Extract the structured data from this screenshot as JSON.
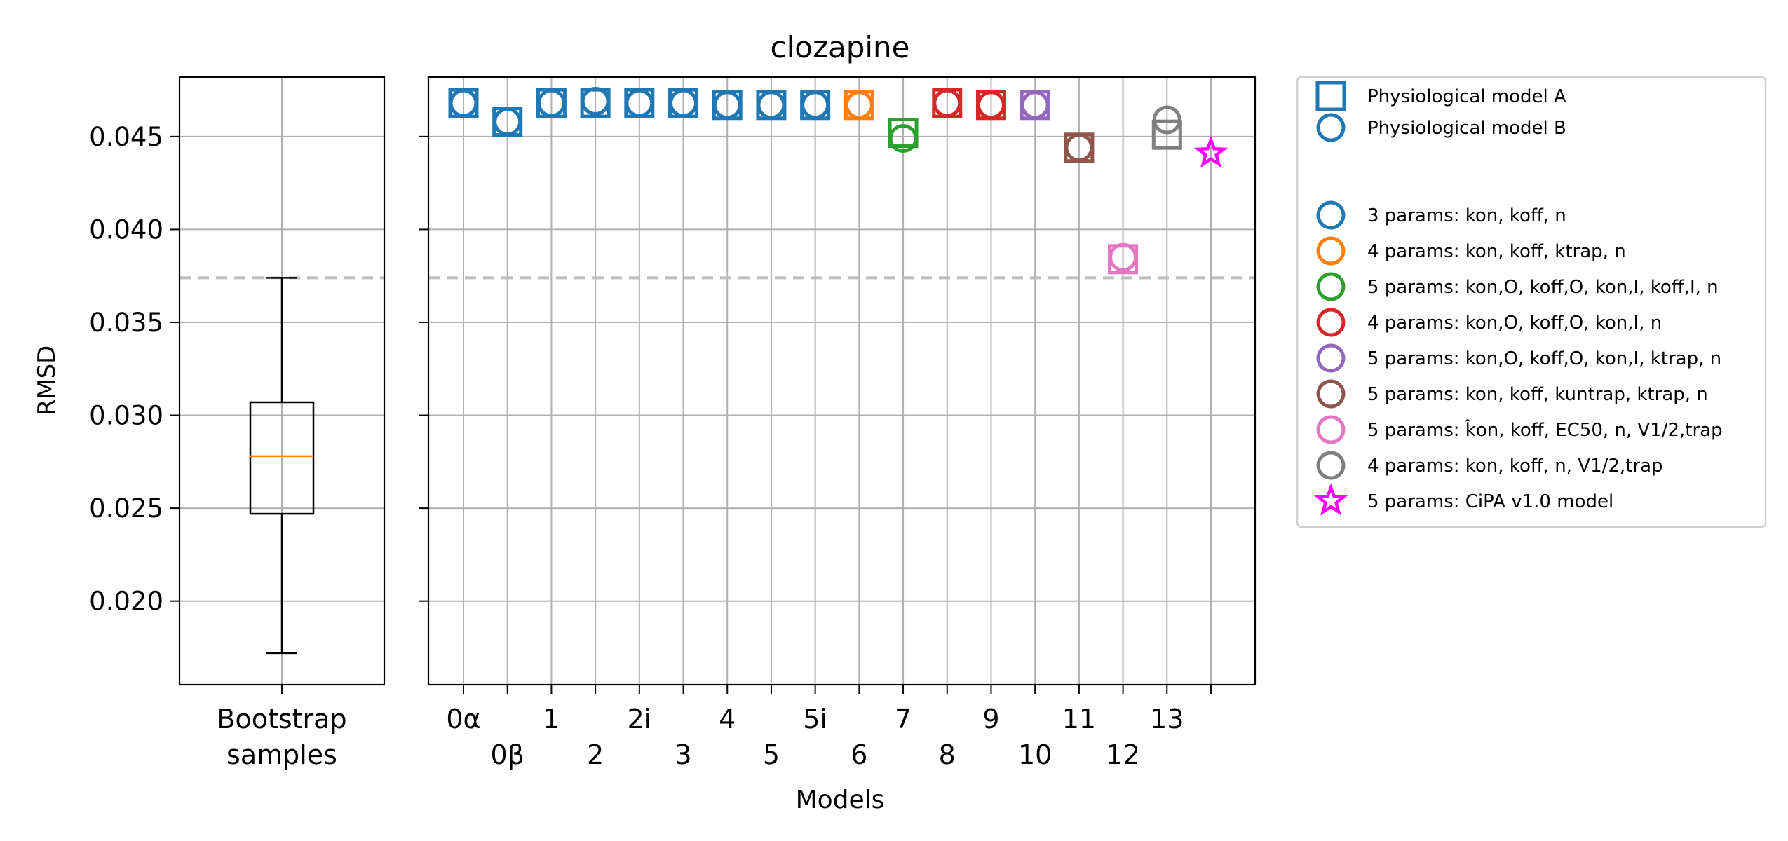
{
  "chart_data": [
    {
      "type": "box",
      "title": "",
      "xlabel": "",
      "ylabel": "RMSD",
      "ylim": [
        0.0155,
        0.0482
      ],
      "yticks": [
        "0.020",
        "0.025",
        "0.030",
        "0.035",
        "0.040",
        "0.045"
      ],
      "category_label": [
        "Bootstrap",
        "samples"
      ],
      "box": {
        "whisker_low": 0.0172,
        "q1": 0.0247,
        "median": 0.0278,
        "q3": 0.0307,
        "whisker_high": 0.0374
      },
      "reference_line": 0.0374,
      "grid": true,
      "colors": {
        "box": "#000000",
        "median": "#ff7f0e",
        "reference_line": "#bdbdbd"
      }
    },
    {
      "type": "scatter",
      "title": "clozapine",
      "xlabel": "Models",
      "ylabel": "",
      "ylim": [
        0.0155,
        0.0482
      ],
      "grid": true,
      "reference_line": 0.0374,
      "x_tick_labels": [
        "0α",
        "0β",
        "1",
        "2",
        "2i",
        "3",
        "4",
        "5",
        "5i",
        "6",
        "7",
        "8",
        "9",
        "10",
        "11",
        "12",
        "13",
        ""
      ],
      "series": [
        {
          "name": "Physiological model A",
          "marker": "square",
          "values": [
            0.0468,
            0.0458,
            0.0468,
            0.0468,
            0.0468,
            0.0468,
            0.0467,
            0.0467,
            0.0467,
            0.0467,
            0.0452,
            0.0468,
            0.0467,
            0.0467,
            0.0444,
            0.0384,
            0.0451,
            null
          ]
        },
        {
          "name": "Physiological model B",
          "marker": "circle",
          "values": [
            0.0468,
            0.0458,
            0.0468,
            0.0469,
            0.0468,
            0.0468,
            0.0467,
            0.0467,
            0.0467,
            0.0467,
            0.0449,
            0.0468,
            0.0467,
            0.0467,
            0.0444,
            0.0385,
            0.0459,
            null
          ]
        },
        {
          "name": "5 params: CiPA v1.0 model",
          "marker": "star",
          "values": [
            null,
            null,
            null,
            null,
            null,
            null,
            null,
            null,
            null,
            null,
            null,
            null,
            null,
            null,
            null,
            null,
            null,
            0.0441
          ]
        }
      ],
      "point_colors": [
        "#1f77b4",
        "#1f77b4",
        "#1f77b4",
        "#1f77b4",
        "#1f77b4",
        "#1f77b4",
        "#1f77b4",
        "#1f77b4",
        "#1f77b4",
        "#ff7f0e",
        "#2ca02c",
        "#d62728",
        "#d62728",
        "#9467bd",
        "#8c564b",
        "#e377c2",
        "#7f7f7f",
        "#ff00ff"
      ],
      "legend_position": "outside-right",
      "legend": {
        "marker_entries": [
          {
            "marker": "square",
            "color": "#1f77b4",
            "label": "Physiological model A"
          },
          {
            "marker": "circle",
            "color": "#1f77b4",
            "label": "Physiological model B"
          }
        ],
        "param_entries": [
          {
            "marker": "circle",
            "color": "#1f77b4",
            "label": "3 params: kon, koff, n"
          },
          {
            "marker": "circle",
            "color": "#ff7f0e",
            "label": "4 params: kon, koff, ktrap, n"
          },
          {
            "marker": "circle",
            "color": "#2ca02c",
            "label": "5 params: kon,O, koff,O, kon,I, koff,I, n"
          },
          {
            "marker": "circle",
            "color": "#d62728",
            "label": "4 params: kon,O, koff,O, kon,I, n"
          },
          {
            "marker": "circle",
            "color": "#9467bd",
            "label": "5 params: kon,O, koff,O, kon,I, ktrap, n"
          },
          {
            "marker": "circle",
            "color": "#8c564b",
            "label": "5 params: kon, koff, kuntrap, ktrap, n"
          },
          {
            "marker": "circle",
            "color": "#e377c2",
            "label": "5 params: k̂on, koff, EC50, n, V1/2,trap"
          },
          {
            "marker": "circle",
            "color": "#7f7f7f",
            "label": "4 params: kon, koff, n, V1/2,trap"
          },
          {
            "marker": "star",
            "color": "#ff00ff",
            "label": "5 params: CiPA v1.0 model"
          }
        ]
      }
    }
  ]
}
